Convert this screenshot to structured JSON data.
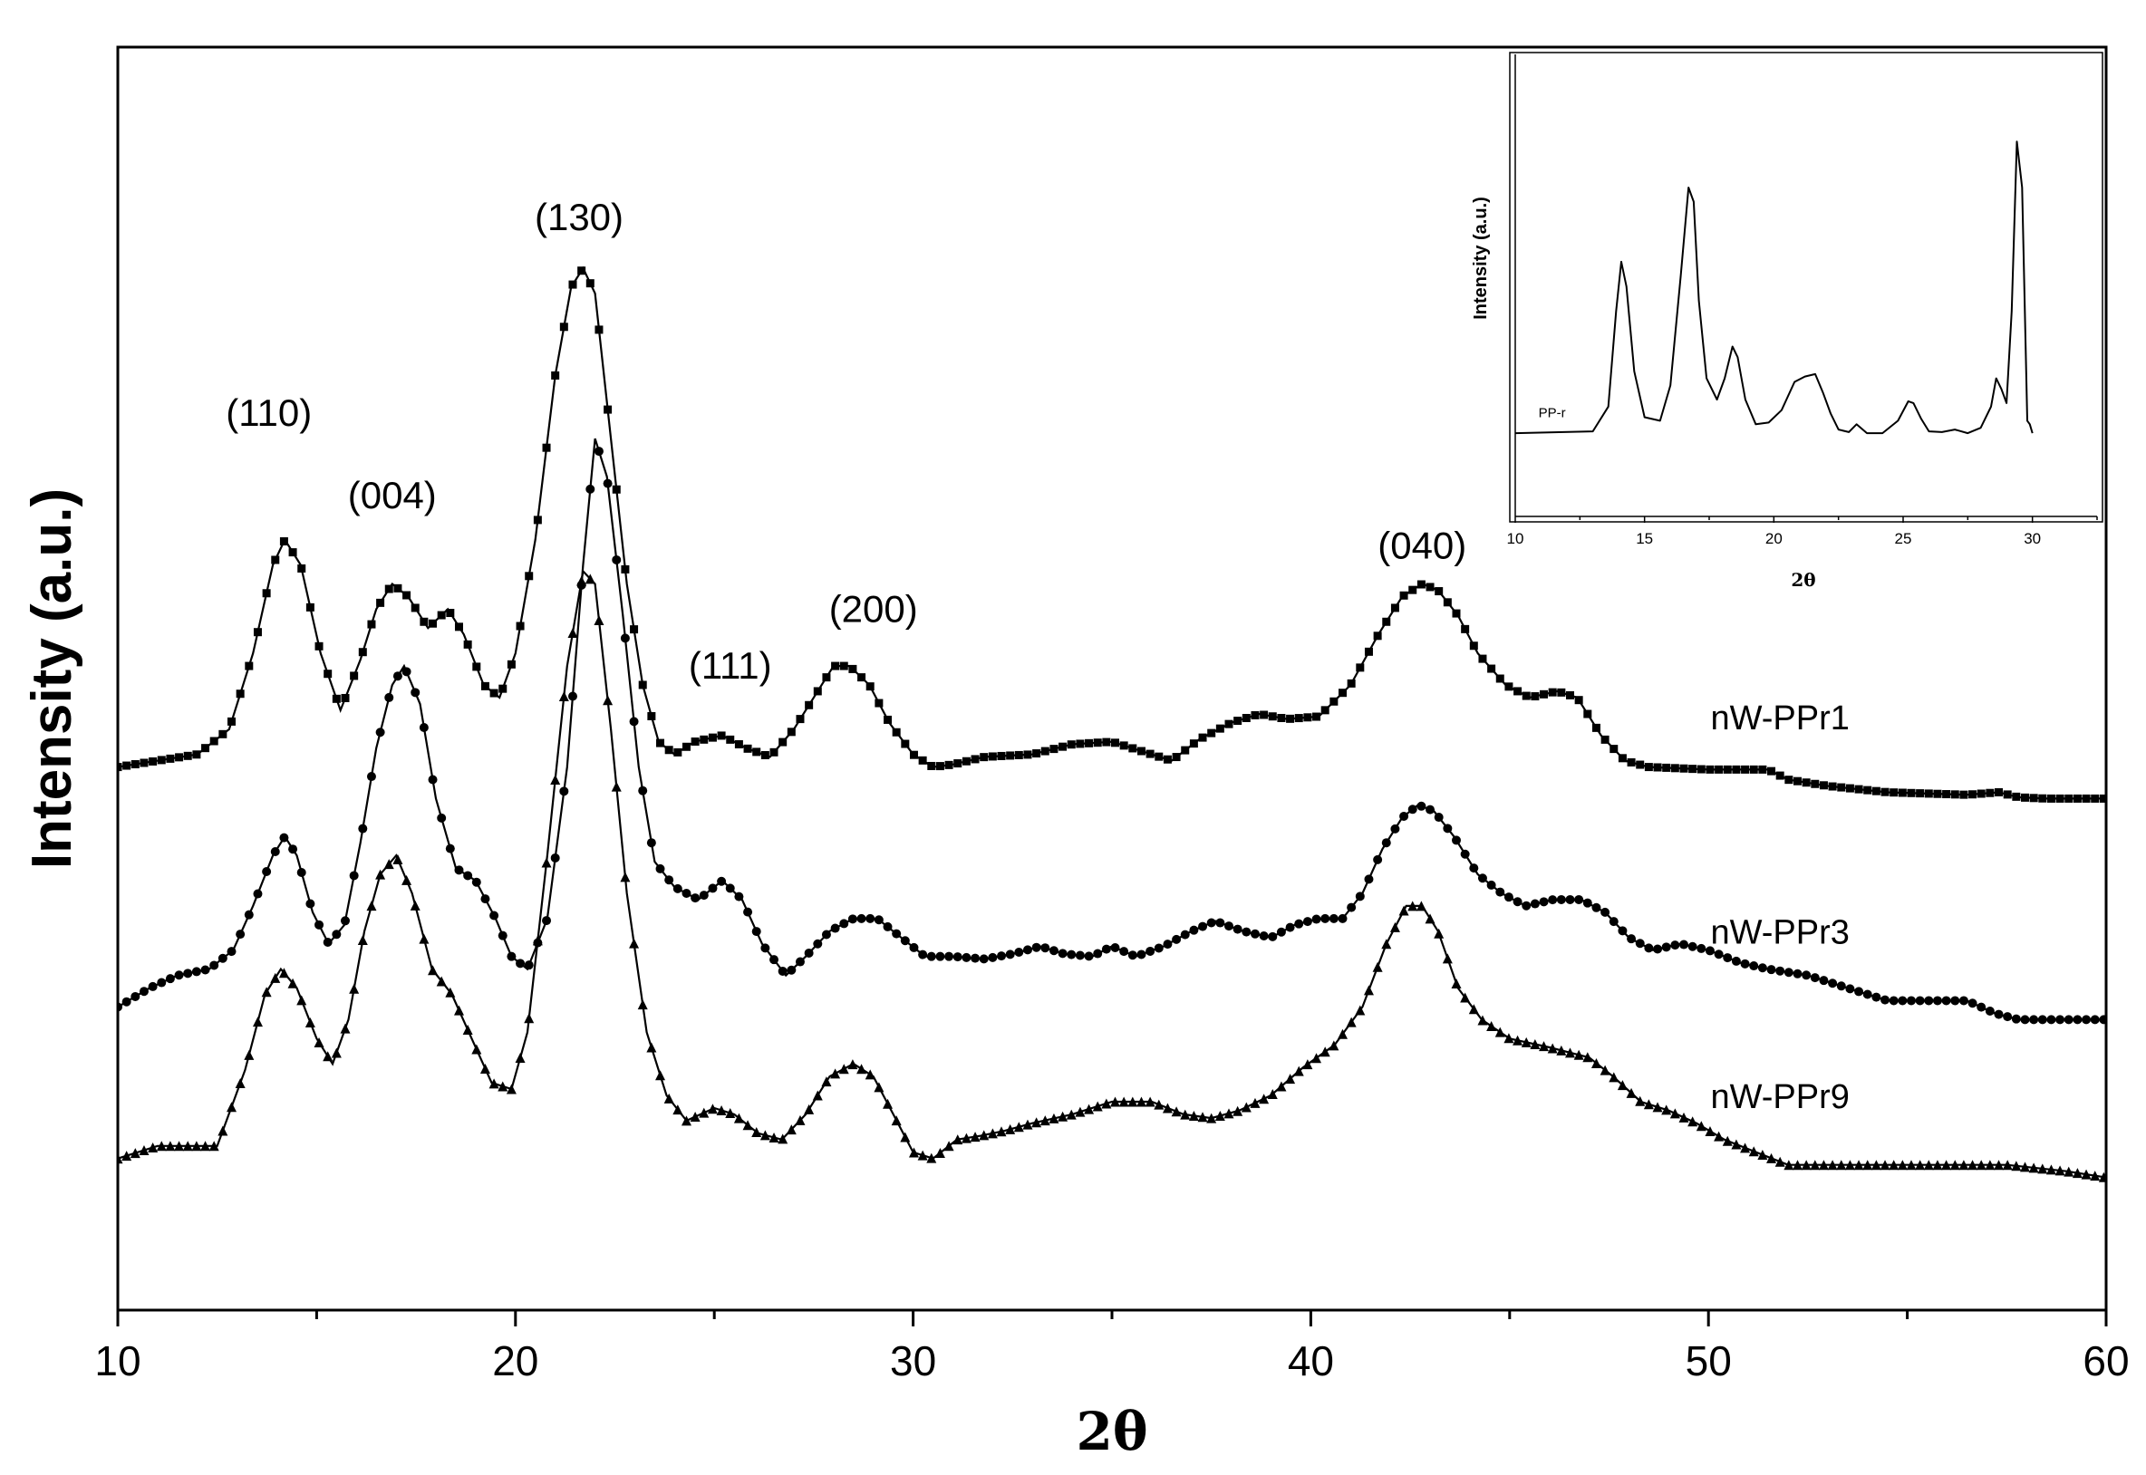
{
  "chart_data": [
    {
      "type": "line",
      "xlabel": "2θ",
      "ylabel": "Intensity (a.u.)",
      "xlim": [
        10,
        60
      ],
      "ylim": [
        0,
        10
      ],
      "x_ticks": [
        10,
        20,
        30,
        40,
        50,
        60
      ],
      "y_ticks_shown": false,
      "legend": "inline labels at right end of each curve",
      "peak_labels": [
        {
          "text": "(110)",
          "x": 13.8,
          "y": 7.0
        },
        {
          "text": "(004)",
          "x": 16.9,
          "y": 6.35
        },
        {
          "text": "(130)",
          "x": 21.6,
          "y": 8.55
        },
        {
          "text": "(111)",
          "x": 25.4,
          "y": 5.0
        },
        {
          "text": "(200)",
          "x": 29.0,
          "y": 5.45
        },
        {
          "text": "(040)",
          "x": 42.8,
          "y": 5.95
        }
      ],
      "series": [
        {
          "name": "nW-PPr1",
          "marker": "square",
          "label_x": 51.8,
          "label_y": 4.6,
          "x": [
            10,
            12,
            12.8,
            13.4,
            13.9,
            14.2,
            14.6,
            15.1,
            15.6,
            16.1,
            16.5,
            16.9,
            17.3,
            17.8,
            18.3,
            18.7,
            19.2,
            19.6,
            20.0,
            20.5,
            21.0,
            21.4,
            21.7,
            22.0,
            22.4,
            22.8,
            23.2,
            23.6,
            24.0,
            24.5,
            25.2,
            25.8,
            26.4,
            27.0,
            27.5,
            28.0,
            28.4,
            28.9,
            29.4,
            30.0,
            30.5,
            31.0,
            31.8,
            33.0,
            34.0,
            35.0,
            36.0,
            36.5,
            37.2,
            38.0,
            38.7,
            39.4,
            40.2,
            41.0,
            41.7,
            42.3,
            42.8,
            43.2,
            43.7,
            44.2,
            44.9,
            45.5,
            46.2,
            46.7,
            47.3,
            47.9,
            48.5,
            50.0,
            51.5,
            52.0,
            53.0,
            54.5,
            56.5,
            57.3,
            57.8,
            58.5,
            60
          ],
          "values": [
            4.3,
            4.4,
            4.6,
            5.2,
            5.9,
            6.1,
            5.9,
            5.2,
            4.75,
            5.15,
            5.55,
            5.75,
            5.65,
            5.4,
            5.55,
            5.35,
            4.95,
            4.85,
            5.2,
            6.1,
            7.4,
            8.1,
            8.25,
            8.05,
            6.9,
            5.75,
            4.95,
            4.5,
            4.4,
            4.5,
            4.55,
            4.45,
            4.38,
            4.6,
            4.85,
            5.1,
            5.1,
            4.95,
            4.65,
            4.4,
            4.3,
            4.32,
            4.38,
            4.4,
            4.48,
            4.5,
            4.4,
            4.35,
            4.52,
            4.65,
            4.72,
            4.68,
            4.7,
            4.95,
            5.35,
            5.65,
            5.75,
            5.7,
            5.5,
            5.2,
            4.95,
            4.85,
            4.9,
            4.85,
            4.55,
            4.35,
            4.3,
            4.28,
            4.28,
            4.2,
            4.15,
            4.1,
            4.08,
            4.1,
            4.06,
            4.05,
            4.05
          ]
        },
        {
          "name": "nW-PPr3",
          "marker": "circle",
          "label_x": 51.8,
          "label_y": 2.9,
          "x": [
            10,
            10.8,
            11.5,
            12.3,
            12.9,
            13.4,
            13.9,
            14.2,
            14.5,
            14.9,
            15.3,
            15.7,
            16.1,
            16.5,
            16.9,
            17.2,
            17.6,
            18.0,
            18.5,
            19.0,
            19.5,
            19.9,
            20.3,
            20.8,
            21.3,
            21.7,
            22.0,
            22.3,
            22.7,
            23.1,
            23.5,
            24.0,
            24.6,
            25.2,
            25.7,
            26.2,
            26.8,
            27.3,
            27.9,
            28.5,
            29.1,
            29.7,
            30.3,
            31.0,
            31.8,
            32.5,
            33.2,
            33.8,
            34.5,
            35.0,
            35.6,
            36.3,
            37.0,
            37.6,
            38.3,
            39.0,
            39.6,
            40.2,
            40.8,
            41.3,
            41.8,
            42.3,
            42.7,
            43.1,
            43.6,
            44.2,
            44.8,
            45.4,
            46.1,
            46.8,
            47.4,
            48.0,
            48.6,
            49.3,
            50.0,
            50.8,
            51.5,
            52.5,
            53.5,
            54.5,
            55.5,
            56.5,
            57.2,
            57.8,
            58.3,
            59.0,
            60
          ],
          "values": [
            2.4,
            2.55,
            2.65,
            2.7,
            2.85,
            3.2,
            3.6,
            3.75,
            3.6,
            3.15,
            2.9,
            3.05,
            3.7,
            4.45,
            4.95,
            5.1,
            4.8,
            4.05,
            3.5,
            3.4,
            3.1,
            2.8,
            2.7,
            3.1,
            4.3,
            5.9,
            6.9,
            6.6,
            5.5,
            4.3,
            3.55,
            3.35,
            3.25,
            3.4,
            3.25,
            2.9,
            2.65,
            2.8,
            3.0,
            3.1,
            3.1,
            2.95,
            2.8,
            2.8,
            2.78,
            2.82,
            2.88,
            2.82,
            2.8,
            2.88,
            2.8,
            2.88,
            3.0,
            3.08,
            3.0,
            2.95,
            3.05,
            3.1,
            3.1,
            3.3,
            3.65,
            3.9,
            4.0,
            3.95,
            3.75,
            3.45,
            3.3,
            3.2,
            3.25,
            3.25,
            3.15,
            2.95,
            2.85,
            2.9,
            2.85,
            2.75,
            2.7,
            2.65,
            2.55,
            2.45,
            2.45,
            2.45,
            2.35,
            2.3,
            2.3,
            2.3,
            2.3
          ]
        },
        {
          "name": "nW-PPr9",
          "marker": "triangle",
          "label_x": 51.8,
          "label_y": 1.6,
          "x": [
            10,
            11,
            12.5,
            13.2,
            13.7,
            14.1,
            14.5,
            15.0,
            15.4,
            15.8,
            16.2,
            16.6,
            17.0,
            17.4,
            17.9,
            18.4,
            18.9,
            19.4,
            19.9,
            20.3,
            20.8,
            21.3,
            21.7,
            22.0,
            22.4,
            22.8,
            23.3,
            23.8,
            24.3,
            25.0,
            25.5,
            26.1,
            26.7,
            27.3,
            27.9,
            28.5,
            29.0,
            29.5,
            30.0,
            30.5,
            31.1,
            31.7,
            32.3,
            33.0,
            34.0,
            35.0,
            36.0,
            36.8,
            37.5,
            38.2,
            39.0,
            39.8,
            40.6,
            41.3,
            41.9,
            42.4,
            42.8,
            43.2,
            43.7,
            44.3,
            45.0,
            46.0,
            47.0,
            47.6,
            48.3,
            49.0,
            49.7,
            50.4,
            51.2,
            52.0,
            53.5,
            55.5,
            57.5,
            59.0,
            60
          ],
          "values": [
            1.2,
            1.3,
            1.3,
            1.9,
            2.5,
            2.7,
            2.55,
            2.15,
            1.95,
            2.3,
            3.0,
            3.45,
            3.6,
            3.3,
            2.7,
            2.5,
            2.15,
            1.8,
            1.75,
            2.2,
            3.6,
            5.1,
            5.85,
            5.75,
            4.6,
            3.3,
            2.2,
            1.7,
            1.5,
            1.6,
            1.55,
            1.4,
            1.35,
            1.55,
            1.85,
            1.95,
            1.85,
            1.55,
            1.25,
            1.2,
            1.35,
            1.38,
            1.42,
            1.48,
            1.55,
            1.65,
            1.65,
            1.55,
            1.52,
            1.58,
            1.7,
            1.92,
            2.1,
            2.4,
            2.9,
            3.2,
            3.2,
            3.0,
            2.55,
            2.3,
            2.15,
            2.08,
            2.0,
            1.85,
            1.65,
            1.58,
            1.48,
            1.35,
            1.25,
            1.15,
            1.15,
            1.15,
            1.15,
            1.1,
            1.05
          ]
        }
      ]
    },
    {
      "type": "line",
      "role": "inset",
      "xlabel": "2θ",
      "ylabel": "Intensity (a.u.)",
      "xlim": [
        10,
        32.5
      ],
      "ylim": [
        0,
        10
      ],
      "x_ticks": [
        10,
        15,
        20,
        25,
        30
      ],
      "series": [
        {
          "name": "PP-r",
          "label_x": 10.9,
          "label_y": 0.5,
          "x": [
            10,
            13.0,
            13.6,
            13.9,
            14.1,
            14.3,
            14.6,
            15.0,
            15.6,
            16.0,
            16.4,
            16.7,
            16.9,
            17.1,
            17.4,
            17.8,
            18.1,
            18.4,
            18.6,
            18.9,
            19.3,
            19.8,
            20.3,
            20.8,
            21.2,
            21.6,
            21.9,
            22.2,
            22.5,
            22.9,
            23.2,
            23.6,
            24.2,
            24.8,
            25.2,
            25.4,
            25.7,
            26.0,
            26.5,
            27.0,
            27.5,
            28.0,
            28.4,
            28.6,
            28.8,
            29.0,
            29.2,
            29.4,
            29.6,
            29.8,
            29.9,
            30.0
          ],
          "values": [
            0.05,
            0.1,
            0.8,
            3.5,
            4.9,
            4.2,
            1.8,
            0.5,
            0.4,
            1.4,
            4.5,
            7.0,
            6.6,
            3.8,
            1.6,
            1.0,
            1.6,
            2.5,
            2.2,
            1.0,
            0.3,
            0.35,
            0.7,
            1.5,
            1.65,
            1.72,
            1.2,
            0.6,
            0.15,
            0.08,
            0.3,
            0.05,
            0.05,
            0.4,
            0.95,
            0.9,
            0.45,
            0.1,
            0.08,
            0.15,
            0.05,
            0.2,
            0.8,
            1.6,
            1.3,
            0.9,
            3.5,
            8.3,
            7.0,
            0.4,
            0.3,
            0.05
          ]
        }
      ]
    }
  ]
}
